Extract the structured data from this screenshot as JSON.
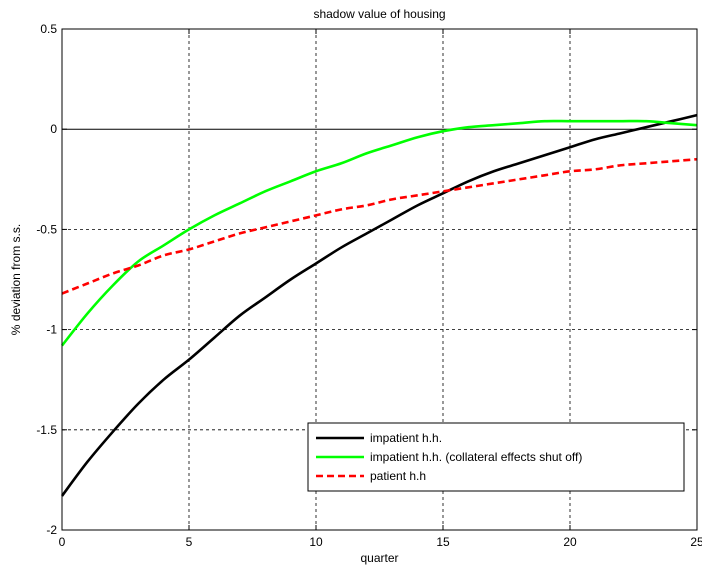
{
  "chart_data": {
    "type": "line",
    "title": "shadow value of housing",
    "xlabel": "quarter",
    "ylabel": "% deviation from s.s.",
    "xlim": [
      0,
      25
    ],
    "ylim": [
      -2,
      0.5
    ],
    "xticks": [
      0,
      5,
      10,
      15,
      20,
      25
    ],
    "yticks": [
      -2,
      -1.5,
      -1,
      -0.5,
      0,
      0.5
    ],
    "xtick_labels": [
      "0",
      "5",
      "10",
      "15",
      "20",
      "25"
    ],
    "ytick_labels": [
      "-2",
      "-1.5",
      "-1",
      "-0.5",
      "0",
      "0.5"
    ],
    "grid": true,
    "zero_line": true,
    "legend_position": "lower-right",
    "x": [
      0,
      1,
      2,
      3,
      4,
      5,
      6,
      7,
      8,
      9,
      10,
      11,
      12,
      13,
      14,
      15,
      16,
      17,
      18,
      19,
      20,
      21,
      22,
      23,
      24,
      25
    ],
    "series": [
      {
        "name": "impatient h.h.",
        "color": "#000000",
        "style": "solid",
        "values": [
          -1.83,
          -1.66,
          -1.51,
          -1.37,
          -1.25,
          -1.15,
          -1.04,
          -0.93,
          -0.84,
          -0.75,
          -0.67,
          -0.59,
          -0.52,
          -0.45,
          -0.38,
          -0.32,
          -0.26,
          -0.21,
          -0.17,
          -0.13,
          -0.09,
          -0.05,
          -0.02,
          0.01,
          0.04,
          0.07
        ]
      },
      {
        "name": "impatient h.h. (collateral effects shut off)",
        "color": "#00ff00",
        "style": "solid",
        "values": [
          -1.08,
          -0.92,
          -0.78,
          -0.66,
          -0.58,
          -0.5,
          -0.43,
          -0.37,
          -0.31,
          -0.26,
          -0.21,
          -0.17,
          -0.12,
          -0.08,
          -0.04,
          -0.01,
          0.01,
          0.02,
          0.03,
          0.04,
          0.04,
          0.04,
          0.04,
          0.04,
          0.03,
          0.02
        ]
      },
      {
        "name": "patient h.h",
        "color": "#ff0000",
        "style": "dashed",
        "values": [
          -0.82,
          -0.77,
          -0.72,
          -0.68,
          -0.63,
          -0.6,
          -0.56,
          -0.52,
          -0.49,
          -0.46,
          -0.43,
          -0.4,
          -0.38,
          -0.35,
          -0.33,
          -0.31,
          -0.29,
          -0.27,
          -0.25,
          -0.23,
          -0.21,
          -0.2,
          -0.18,
          -0.17,
          -0.16,
          -0.15
        ]
      }
    ]
  }
}
